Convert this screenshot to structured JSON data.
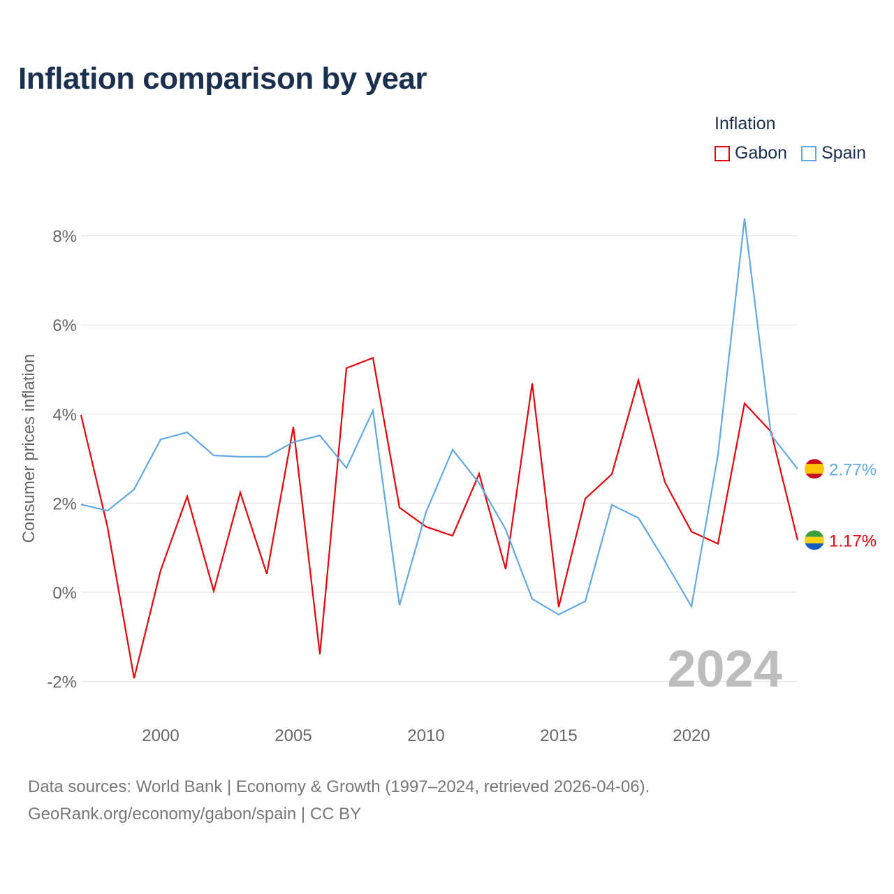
{
  "chart_data": {
    "type": "line",
    "title": "Inflation comparison by year",
    "ylabel": "Consumer prices inflation",
    "xlabel": "",
    "legend_title": "Inflation",
    "year_watermark": "2024",
    "xlim": [
      1997,
      2024
    ],
    "ylim": [
      -3,
      8.8
    ],
    "y_ticks": [
      -2,
      0,
      2,
      4,
      6,
      8
    ],
    "y_tick_labels": [
      "-2%",
      "0%",
      "2%",
      "4%",
      "6%",
      "8%"
    ],
    "x_ticks": [
      2000,
      2005,
      2010,
      2015,
      2020
    ],
    "x_tick_labels": [
      "2000",
      "2005",
      "2010",
      "2015",
      "2020"
    ],
    "grid": true,
    "x": [
      1997,
      1998,
      1999,
      2000,
      2001,
      2002,
      2003,
      2004,
      2005,
      2006,
      2007,
      2008,
      2009,
      2010,
      2011,
      2012,
      2013,
      2014,
      2015,
      2016,
      2017,
      2018,
      2019,
      2020,
      2021,
      2022,
      2023,
      2024
    ],
    "series": [
      {
        "name": "Gabon",
        "color": "#e8000b",
        "flag": "gabon-flag-icon",
        "end_label": "1.17%",
        "values": [
          3.98,
          1.46,
          -1.93,
          0.49,
          2.15,
          0.03,
          2.24,
          0.41,
          3.71,
          -1.39,
          5.03,
          5.26,
          1.9,
          1.47,
          1.27,
          2.66,
          0.52,
          4.69,
          -0.33,
          2.1,
          2.65,
          4.76,
          2.47,
          1.36,
          1.09,
          4.24,
          3.6,
          1.17
        ]
      },
      {
        "name": "Spain",
        "color": "#62a8e5",
        "flag": "spain-flag-icon",
        "end_label": "2.77%",
        "values": [
          1.97,
          1.83,
          2.31,
          3.43,
          3.59,
          3.07,
          3.04,
          3.04,
          3.37,
          3.52,
          2.79,
          4.08,
          -0.29,
          1.8,
          3.2,
          2.45,
          1.41,
          -0.15,
          -0.5,
          -0.2,
          1.96,
          1.67,
          0.7,
          -0.32,
          3.09,
          8.39,
          3.53,
          2.77
        ]
      }
    ]
  },
  "source": {
    "line1": "Data sources: World Bank | Economy & Growth (1997–2024, retrieved 2026-04-06).",
    "line2": "GeoRank.org/economy/gabon/spain | CC BY"
  }
}
